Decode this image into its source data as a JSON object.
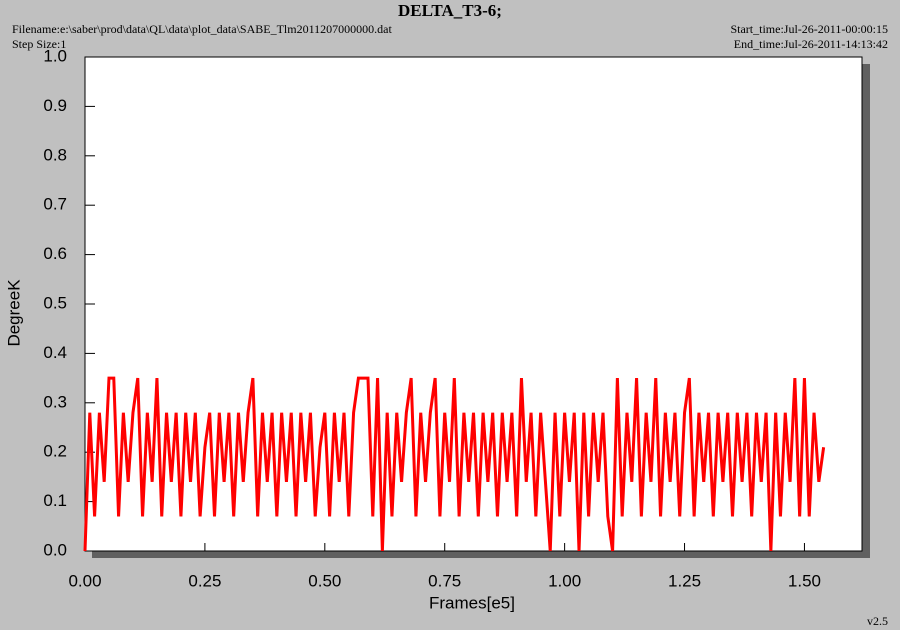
{
  "chart_data": {
    "type": "line",
    "title": "DELTA_T3-6;",
    "filename": "Filename:e:\\saber\\prod\\data\\QL\\data\\plot_data\\SABE_Tlm2011207000000.dat",
    "step_size": "Step Size:1",
    "start_time": "Start_time:Jul-26-2011-00:00:15",
    "end_time": "End_time:Jul-26-2011-14:13:42",
    "version": "v2.5",
    "x_label": "Frames[e5]",
    "y_label": "DegreeK",
    "xlim": [
      0,
      1.62
    ],
    "ylim": [
      0,
      1
    ],
    "xticks": [
      {
        "value": 0,
        "label": "0.00"
      },
      {
        "value": 0.25,
        "label": "0.25"
      },
      {
        "value": 0.5,
        "label": "0.50"
      },
      {
        "value": 0.75,
        "label": "0.75"
      },
      {
        "value": 1,
        "label": "1.00"
      },
      {
        "value": 1.25,
        "label": "1.25"
      },
      {
        "value": 1.5,
        "label": "1.50"
      }
    ],
    "yticks": [
      {
        "value": 0,
        "label": "0.0"
      },
      0.1,
      0.2,
      0.3,
      0.4,
      0.5,
      0.6,
      0.7,
      0.8,
      0.9,
      {
        "value": 1,
        "label": "1.0"
      }
    ],
    "series": [
      {
        "color": "#ff0000",
        "x": [
          0.0,
          0.01,
          0.02,
          0.03,
          0.04,
          0.05,
          0.06,
          0.07,
          0.08,
          0.09,
          0.1,
          0.11,
          0.12,
          0.13,
          0.14,
          0.15,
          0.16,
          0.17,
          0.18,
          0.19,
          0.2,
          0.21,
          0.22,
          0.23,
          0.24,
          0.25,
          0.26,
          0.27,
          0.28,
          0.29,
          0.3,
          0.31,
          0.32,
          0.33,
          0.34,
          0.35,
          0.36,
          0.37,
          0.38,
          0.39,
          0.4,
          0.41,
          0.42,
          0.43,
          0.44,
          0.45,
          0.46,
          0.47,
          0.48,
          0.49,
          0.5,
          0.51,
          0.52,
          0.53,
          0.54,
          0.55,
          0.56,
          0.57,
          0.58,
          0.59,
          0.6,
          0.61,
          0.62,
          0.63,
          0.64,
          0.65,
          0.66,
          0.67,
          0.68,
          0.69,
          0.7,
          0.71,
          0.72,
          0.73,
          0.74,
          0.75,
          0.76,
          0.77,
          0.78,
          0.79,
          0.8,
          0.81,
          0.82,
          0.83,
          0.84,
          0.85,
          0.86,
          0.87,
          0.88,
          0.89,
          0.9,
          0.91,
          0.92,
          0.93,
          0.94,
          0.95,
          0.96,
          0.97,
          0.98,
          0.99,
          1.0,
          1.01,
          1.02,
          1.03,
          1.04,
          1.05,
          1.06,
          1.07,
          1.08,
          1.09,
          1.1,
          1.11,
          1.12,
          1.13,
          1.14,
          1.15,
          1.16,
          1.17,
          1.18,
          1.19,
          1.2,
          1.21,
          1.22,
          1.23,
          1.24,
          1.25,
          1.26,
          1.27,
          1.28,
          1.29,
          1.3,
          1.31,
          1.32,
          1.33,
          1.34,
          1.35,
          1.36,
          1.37,
          1.38,
          1.39,
          1.4,
          1.41,
          1.42,
          1.43,
          1.44,
          1.45,
          1.46,
          1.47,
          1.48,
          1.49,
          1.5,
          1.51,
          1.52,
          1.53,
          1.54
        ],
        "values": [
          0.0,
          0.28,
          0.07,
          0.28,
          0.14,
          0.35,
          0.35,
          0.07,
          0.28,
          0.14,
          0.28,
          0.35,
          0.07,
          0.28,
          0.14,
          0.35,
          0.07,
          0.28,
          0.14,
          0.28,
          0.07,
          0.28,
          0.14,
          0.28,
          0.07,
          0.21,
          0.28,
          0.07,
          0.28,
          0.14,
          0.28,
          0.07,
          0.28,
          0.14,
          0.28,
          0.35,
          0.07,
          0.28,
          0.14,
          0.28,
          0.07,
          0.28,
          0.14,
          0.28,
          0.07,
          0.28,
          0.14,
          0.28,
          0.07,
          0.21,
          0.28,
          0.07,
          0.28,
          0.14,
          0.28,
          0.07,
          0.28,
          0.35,
          0.35,
          0.35,
          0.07,
          0.35,
          0.0,
          0.28,
          0.07,
          0.28,
          0.14,
          0.28,
          0.35,
          0.07,
          0.28,
          0.14,
          0.28,
          0.35,
          0.07,
          0.28,
          0.14,
          0.35,
          0.07,
          0.28,
          0.14,
          0.28,
          0.07,
          0.28,
          0.14,
          0.28,
          0.07,
          0.28,
          0.14,
          0.28,
          0.07,
          0.35,
          0.14,
          0.28,
          0.07,
          0.28,
          0.14,
          0.0,
          0.28,
          0.07,
          0.28,
          0.14,
          0.28,
          0.0,
          0.28,
          0.07,
          0.28,
          0.14,
          0.28,
          0.07,
          0.0,
          0.35,
          0.07,
          0.28,
          0.14,
          0.35,
          0.07,
          0.28,
          0.14,
          0.35,
          0.07,
          0.28,
          0.14,
          0.28,
          0.07,
          0.28,
          0.35,
          0.07,
          0.28,
          0.14,
          0.28,
          0.07,
          0.28,
          0.14,
          0.28,
          0.07,
          0.28,
          0.14,
          0.28,
          0.07,
          0.28,
          0.14,
          0.28,
          0.0,
          0.28,
          0.07,
          0.28,
          0.14,
          0.35,
          0.07,
          0.35,
          0.07,
          0.28,
          0.14,
          0.21
        ]
      }
    ]
  }
}
